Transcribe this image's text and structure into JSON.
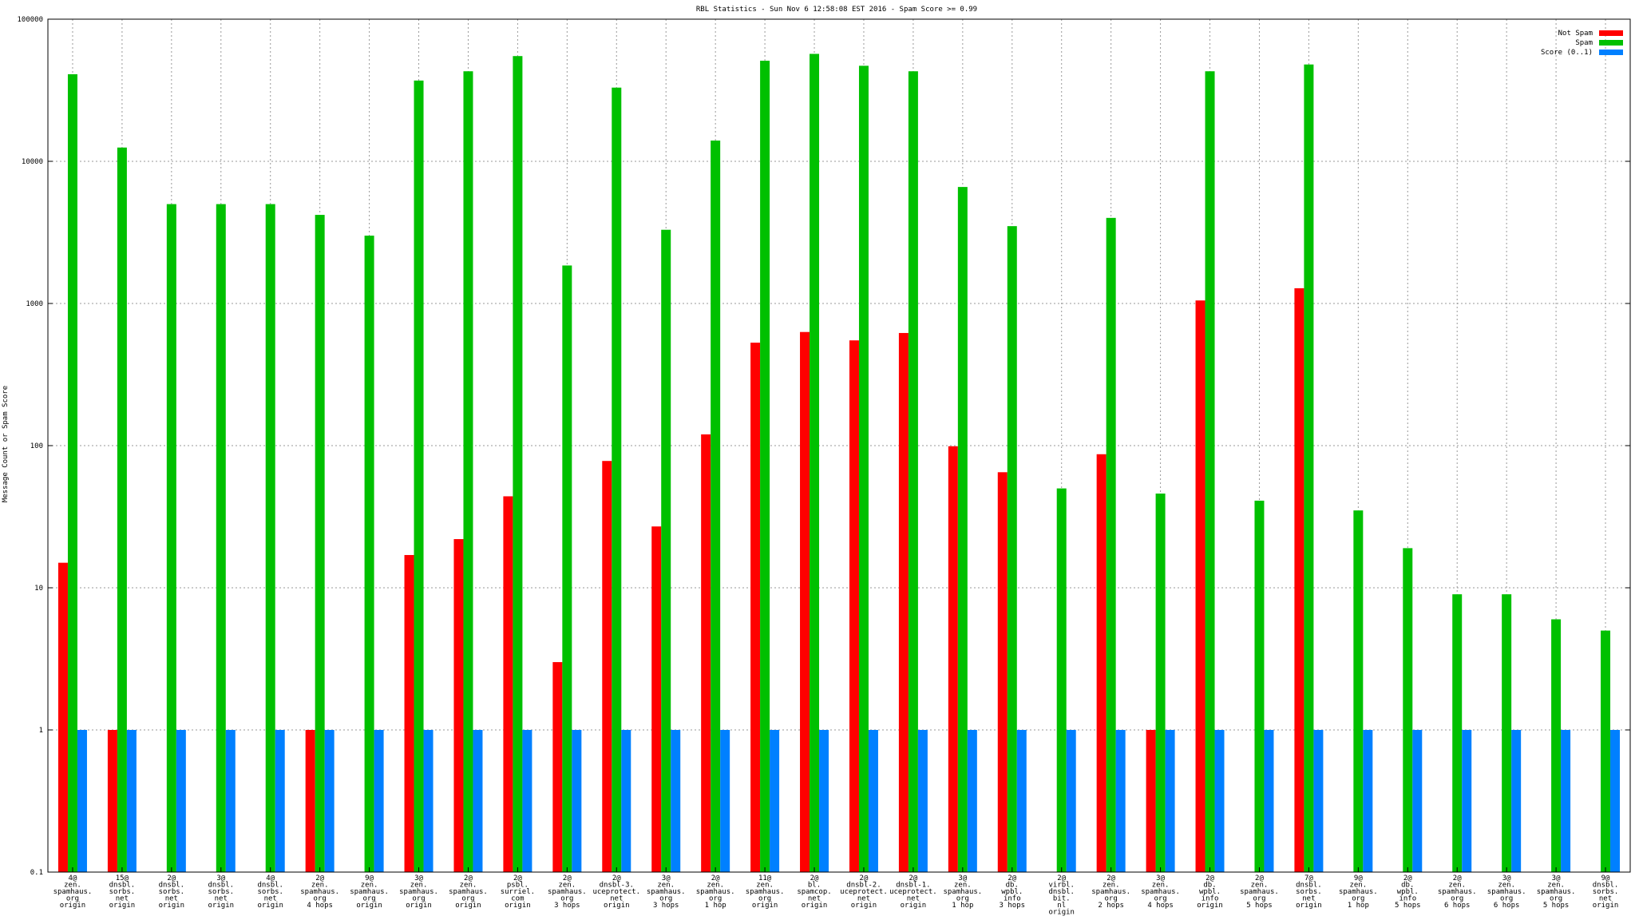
{
  "chart_data": {
    "type": "bar",
    "title": "RBL Statistics - Sun Nov  6 12:58:08 EST 2016 - Spam Score >= 0.99",
    "xlabel": "",
    "ylabel": "Message Count or Spam Score",
    "yscale": "log",
    "ylim": [
      0.1,
      100000
    ],
    "y_ticks": [
      "0.1",
      "1",
      "10",
      "100",
      "1000",
      "10000",
      "100000"
    ],
    "grid": true,
    "legend_position": "top-right",
    "categories": [
      [
        "4@",
        "zen.",
        "spamhaus.",
        "org",
        "origin"
      ],
      [
        "15@",
        "dnsbl.",
        "sorbs.",
        "net",
        "origin"
      ],
      [
        "2@",
        "dnsbl.",
        "sorbs.",
        "net",
        "origin"
      ],
      [
        "3@",
        "dnsbl.",
        "sorbs.",
        "net",
        "origin"
      ],
      [
        "4@",
        "dnsbl.",
        "sorbs.",
        "net",
        "origin"
      ],
      [
        "2@",
        "zen.",
        "spamhaus.",
        "org",
        "4 hops"
      ],
      [
        "9@",
        "zen.",
        "spamhaus.",
        "org",
        "origin"
      ],
      [
        "3@",
        "zen.",
        "spamhaus.",
        "org",
        "origin"
      ],
      [
        "2@",
        "zen.",
        "spamhaus.",
        "org",
        "origin"
      ],
      [
        "2@",
        "psbl.",
        "surriel.",
        "com",
        "origin"
      ],
      [
        "2@",
        "zen.",
        "spamhaus.",
        "org",
        "3 hops"
      ],
      [
        "2@",
        "dnsbl-3.",
        "uceprotect.",
        "net",
        "origin"
      ],
      [
        "3@",
        "zen.",
        "spamhaus.",
        "org",
        "3 hops"
      ],
      [
        "2@",
        "zen.",
        "spamhaus.",
        "org",
        "1 hop"
      ],
      [
        "11@",
        "zen.",
        "spamhaus.",
        "org",
        "origin"
      ],
      [
        "2@",
        "bl.",
        "spamcop.",
        "net",
        "origin"
      ],
      [
        "2@",
        "dnsbl-2.",
        "uceprotect.",
        "net",
        "origin"
      ],
      [
        "2@",
        "dnsbl-1.",
        "uceprotect.",
        "net",
        "origin"
      ],
      [
        "3@",
        "zen.",
        "spamhaus.",
        "org",
        "1 hop"
      ],
      [
        "2@",
        "db.",
        "wpbl.",
        "info",
        "3 hops"
      ],
      [
        "2@",
        "virbl.",
        "dnsbl.",
        "bit.",
        "nl",
        "origin"
      ],
      [
        "2@",
        "zen.",
        "spamhaus.",
        "org",
        "2 hops"
      ],
      [
        "3@",
        "zen.",
        "spamhaus.",
        "org",
        "4 hops"
      ],
      [
        "2@",
        "db.",
        "wpbl.",
        "info",
        "origin"
      ],
      [
        "2@",
        "zen.",
        "spamhaus.",
        "org",
        "5 hops"
      ],
      [
        "7@",
        "dnsbl.",
        "sorbs.",
        "net",
        "origin"
      ],
      [
        "9@",
        "zen.",
        "spamhaus.",
        "org",
        "1 hop"
      ],
      [
        "2@",
        "db.",
        "wpbl.",
        "info",
        "5 hops"
      ],
      [
        "2@",
        "zen.",
        "spamhaus.",
        "org",
        "6 hops"
      ],
      [
        "3@",
        "zen.",
        "spamhaus.",
        "org",
        "6 hops"
      ],
      [
        "3@",
        "zen.",
        "spamhaus.",
        "org",
        "5 hops"
      ],
      [
        "9@",
        "dnsbl.",
        "sorbs.",
        "net",
        "origin"
      ]
    ],
    "series": [
      {
        "name": "Not Spam",
        "color": "#ff0000",
        "values": [
          15,
          1,
          null,
          null,
          null,
          1,
          null,
          17,
          22,
          44,
          3,
          78,
          27,
          120,
          530,
          630,
          550,
          620,
          99,
          65,
          null,
          87,
          1,
          1050,
          null,
          1280,
          null,
          null,
          null,
          null,
          null,
          null
        ]
      },
      {
        "name": "Spam",
        "color": "#00c000",
        "values": [
          41000,
          12500,
          5000,
          5000,
          5000,
          4200,
          3000,
          37000,
          43000,
          55000,
          1850,
          33000,
          3300,
          14000,
          51000,
          57000,
          47000,
          43000,
          6600,
          3500,
          50,
          4000,
          46,
          43000,
          41,
          48000,
          35,
          19,
          9,
          9,
          6,
          5
        ]
      },
      {
        "name": "Score (0..1)",
        "color": "#0080ff",
        "values": [
          1,
          1,
          1,
          1,
          1,
          1,
          1,
          1,
          1,
          1,
          1,
          1,
          1,
          1,
          1,
          1,
          1,
          1,
          1,
          1,
          1,
          1,
          1,
          1,
          1,
          1,
          1,
          1,
          1,
          1,
          1,
          1
        ]
      }
    ]
  }
}
